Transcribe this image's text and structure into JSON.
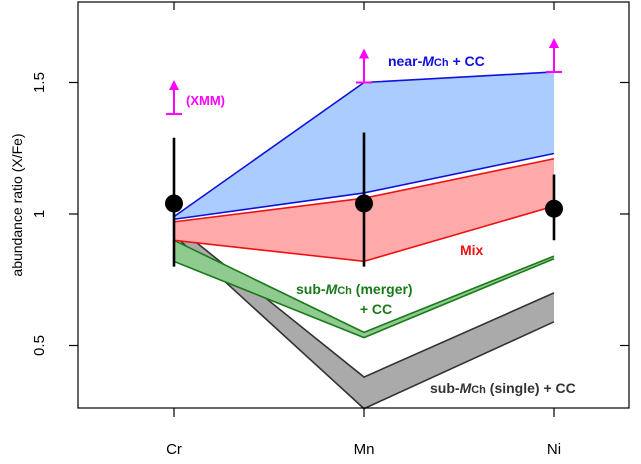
{
  "chart_data": {
    "type": "area",
    "categories": [
      "Cr",
      "Mn",
      "Ni"
    ],
    "xlabel": "",
    "ylabel": "abundance ratio (X/Fe)",
    "ylim": [
      0.25,
      1.75
    ],
    "yticks": [
      0.5,
      1,
      1.5
    ],
    "ytick_labels": [
      "0.5",
      "1",
      "1.5"
    ],
    "grid": false,
    "observed": {
      "values": [
        1.04,
        1.04,
        1.02
      ],
      "error_low": [
        0.8,
        0.8,
        0.9
      ],
      "error_high": [
        1.29,
        1.31,
        1.15
      ],
      "color": "#000000"
    },
    "lower_limits": {
      "label": "(XMM)",
      "color": "#ff00ff",
      "points": [
        {
          "category": "Cr",
          "value": 1.38
        },
        {
          "category": "Mn",
          "value": 1.5
        },
        {
          "category": "Ni",
          "value": 1.54
        }
      ]
    },
    "bands": [
      {
        "name": "sub-MCh (single) + CC",
        "label_parts": [
          "sub-",
          "M",
          "Ch",
          " (single) + CC"
        ],
        "upper": [
          0.96,
          0.38,
          0.7
        ],
        "lower": [
          0.92,
          0.26,
          0.59
        ],
        "fill": "#aaaaaa",
        "edge": "#333333",
        "text": "#333333"
      },
      {
        "name": "sub-MCh (merger) + CC",
        "label_parts": [
          "sub-",
          "M",
          "Ch",
          " (merger)"
        ],
        "label_line2": "+ CC",
        "upper": [
          0.9,
          0.55,
          0.84
        ],
        "lower": [
          0.82,
          0.53,
          0.83
        ],
        "fill": "#8fca8f",
        "edge": "#1a7a1a",
        "text": "#1a7a1a"
      },
      {
        "name": "Mix",
        "label": "Mix",
        "upper": [
          0.97,
          1.06,
          1.21
        ],
        "lower": [
          0.9,
          0.82,
          1.03
        ],
        "fill": "#ffaaaa",
        "edge": "#ee1111",
        "text": "#ee1111"
      },
      {
        "name": "near-MCh + CC",
        "label_parts": [
          "near-",
          "M",
          "Ch",
          " + CC"
        ],
        "upper": [
          0.99,
          1.5,
          1.54
        ],
        "lower": [
          0.98,
          1.08,
          1.23
        ],
        "fill": "#aaccff",
        "edge": "#1111dd",
        "text": "#1111dd"
      }
    ]
  }
}
